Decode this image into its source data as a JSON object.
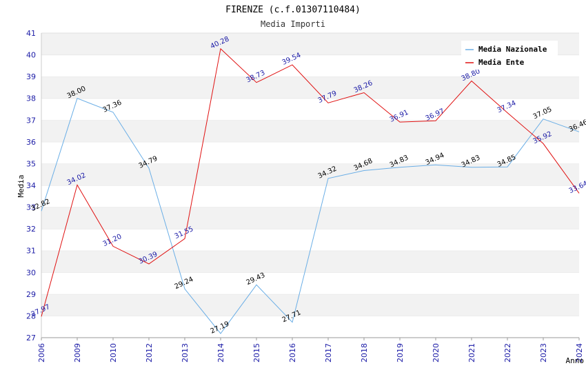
{
  "chart_data": {
    "type": "line",
    "title": "FIRENZE (c.f.01307110484)",
    "subtitle": "Media Importi",
    "xlabel": "Anno",
    "ylabel": "Media",
    "ylim": [
      27,
      41
    ],
    "yticks": [
      27,
      28,
      29,
      30,
      31,
      32,
      33,
      34,
      35,
      36,
      37,
      38,
      39,
      40,
      41
    ],
    "categories": [
      "2006",
      "2009",
      "2010",
      "2012",
      "2013",
      "2014",
      "2015",
      "2016",
      "2017",
      "2018",
      "2019",
      "2020",
      "2021",
      "2022",
      "2023",
      "2024"
    ],
    "grid": "horizontal bands",
    "legend_position": "top-right",
    "series": [
      {
        "name": "Media Nazionale",
        "color": "#6aaee6",
        "values": [
          32.82,
          38.0,
          37.36,
          34.79,
          29.24,
          27.19,
          29.43,
          27.71,
          34.32,
          34.68,
          34.83,
          34.94,
          34.83,
          34.85,
          37.05,
          36.46
        ],
        "labels": [
          "32.82",
          "38.00",
          "37.36",
          "34.79",
          "29.24",
          "27.19",
          "29.43",
          "27.71",
          "34.32",
          "34.68",
          "34.83",
          "34.94",
          "34.83",
          "34.85",
          "37.05",
          "36.46"
        ]
      },
      {
        "name": "Media Ente",
        "color": "#e01010",
        "values": [
          27.97,
          34.02,
          31.2,
          30.39,
          31.55,
          40.28,
          38.73,
          39.54,
          37.79,
          38.26,
          36.91,
          36.97,
          38.8,
          37.34,
          35.92,
          33.64
        ],
        "labels": [
          "27.97",
          "34.02",
          "31.20",
          "30.39",
          "31.55",
          "40.28",
          "38.73",
          "39.54",
          "37.79",
          "38.26",
          "36.91",
          "36.97",
          "38.80",
          "37.34",
          "35.92",
          "33.64"
        ]
      }
    ]
  }
}
